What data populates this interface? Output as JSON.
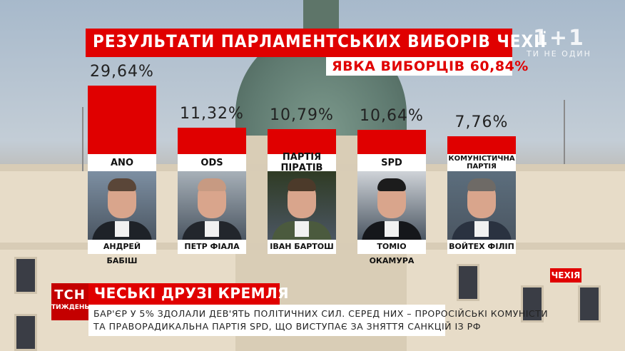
{
  "title": "РЕЗУЛЬТАТИ ПАРЛАМЕНТСЬКИХ ВИБОРІВ ЧЕХІЇ",
  "subtitle": "ЯВКА ВИБОРЦІВ 60,84%",
  "colors": {
    "accent": "#e00000",
    "text": "#222222",
    "card": "#ffffff"
  },
  "chart_data": {
    "type": "bar",
    "title": "РЕЗУЛЬТАТИ ПАРЛАМЕНТСЬКИХ ВИБОРІВ ЧЕХІЇ",
    "subtitle": "ЯВКА ВИБОРЦІВ 60,84%",
    "categories": [
      "ANO",
      "ODS",
      "ПАРТІЯ ПІРАТІВ",
      "SPD",
      "КОМУНІСТИЧНА ПАРТІЯ"
    ],
    "values": [
      29.64,
      11.32,
      10.79,
      10.64,
      7.76
    ],
    "value_labels": [
      "29,64%",
      "11,32%",
      "10,79%",
      "10,64%",
      "7,76%"
    ],
    "leaders": [
      "АНДРЕЙ БАБІШ",
      "ПЕТР ФІАЛА",
      "ІВАН БАРТОШ",
      "ТОМІО ОКАМУРА",
      "ВОЙТЕХ ФІЛІП"
    ],
    "xlabel": "",
    "ylabel": "",
    "ylim": [
      0,
      29.64
    ],
    "grid": false,
    "legend": "none"
  },
  "photos": [
    {
      "hair": "#5a4638",
      "suit": "#1e2228",
      "bg": "#7d8fa2"
    },
    {
      "hair": "#c79a82",
      "suit": "#22262c",
      "bg": "#a7b0b8"
    },
    {
      "hair": "#4c3a2a",
      "suit": "#4b5a3e",
      "bg": "#2f3b24"
    },
    {
      "hair": "#1c1c1c",
      "suit": "#15171b",
      "bg": "#cfd3d8"
    },
    {
      "hair": "#6e6a66",
      "suit": "#2a3240",
      "bg": "#5c6e7d"
    }
  ],
  "news": {
    "country_tag": "ЧЕХІЯ",
    "logo_top": "ТСН",
    "logo_bottom": "ТИЖДЕНЬ",
    "headline": "ЧЕСЬКІ ДРУЗІ КРЕМЛЯ",
    "ticker_line1": "БАР'ЄР У 5% ЗДОЛАЛИ ДЕВ'ЯТЬ ПОЛІТИЧНИХ СИЛ. СЕРЕД НИХ – ПРОРОСІЙСЬКІ КОМУНІСТИ",
    "ticker_line2": "ТА ПРАВОРАДИКАЛЬНА ПАРТІЯ SPD, ЩО ВИСТУПАЄ ЗА ЗНЯТТЯ САНКЦІЙ ІЗ РФ"
  },
  "watermark": {
    "logo": "1+1",
    "slogan": "ТИ НЕ ОДИН"
  }
}
